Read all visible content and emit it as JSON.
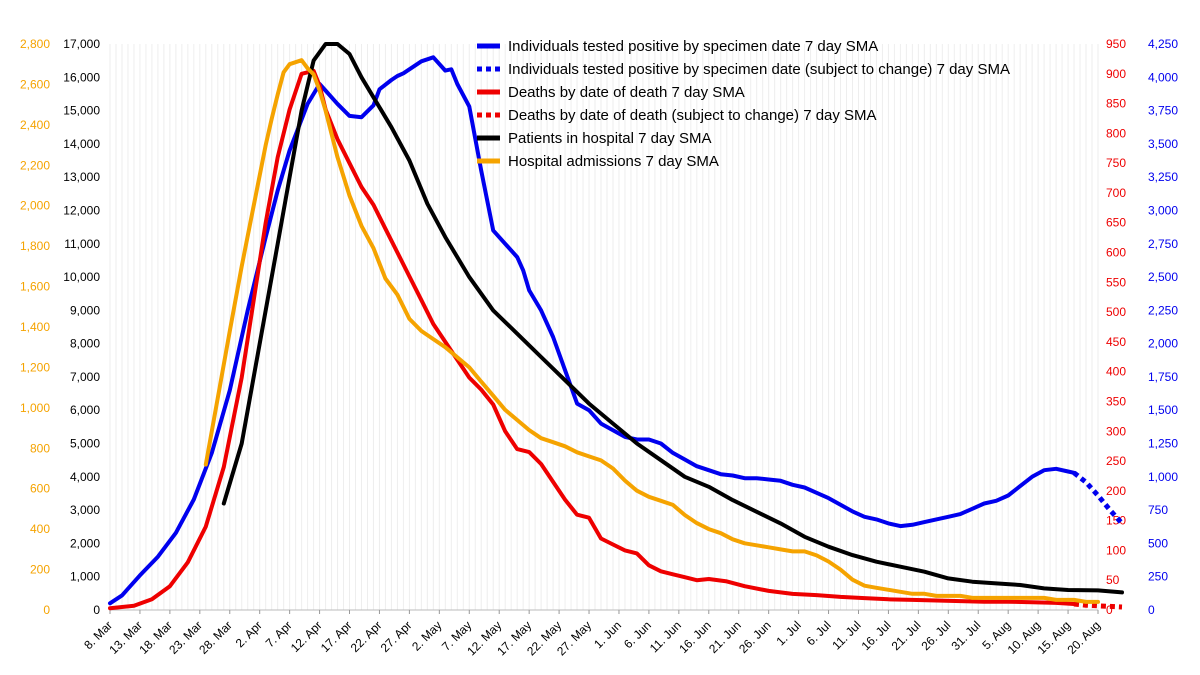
{
  "chart_data": {
    "type": "line",
    "title": "",
    "xlabel": "",
    "x_tick_labels": [
      "8. Mar",
      "13. Mar",
      "18. Mar",
      "23. Mar",
      "28. Mar",
      "2. Apr",
      "7. Apr",
      "12. Apr",
      "17. Apr",
      "22. Apr",
      "27. Apr",
      "2. May",
      "7. May",
      "12. May",
      "17. May",
      "22. May",
      "27. May",
      "1. Jun",
      "6. Jun",
      "11. Jun",
      "16. Jun",
      "21. Jun",
      "26. Jun",
      "1. Jul",
      "6. Jul",
      "11. Jul",
      "16. Jul",
      "21. Jul",
      "26. Jul",
      "31. Jul",
      "5. Aug",
      "10. Aug",
      "15. Aug",
      "20. Aug"
    ],
    "x_day_range": [
      0,
      165
    ],
    "axes": {
      "y_hospital": {
        "position": "left-outer",
        "color": "#f5a300",
        "range": [
          0,
          2800
        ],
        "ticks": [
          "0",
          "200",
          "400",
          "600",
          "800",
          "1,000",
          "1,200",
          "1,400",
          "1,600",
          "1,800",
          "2,000",
          "2,200",
          "2,400",
          "2,600",
          "2,800"
        ]
      },
      "y_patients": {
        "position": "left-inner",
        "color": "#000000",
        "range": [
          0,
          17000
        ],
        "ticks": [
          "0",
          "1,000",
          "2,000",
          "3,000",
          "4,000",
          "5,000",
          "6,000",
          "7,000",
          "8,000",
          "9,000",
          "10,000",
          "11,000",
          "12,000",
          "13,000",
          "14,000",
          "15,000",
          "16,000",
          "17,000"
        ]
      },
      "y_deaths": {
        "position": "right-inner",
        "color": "#ee0000",
        "range": [
          0,
          950
        ],
        "ticks": [
          "0",
          "50",
          "100",
          "150",
          "200",
          "250",
          "300",
          "350",
          "400",
          "450",
          "500",
          "550",
          "600",
          "650",
          "700",
          "750",
          "800",
          "850",
          "900",
          "950"
        ]
      },
      "y_cases": {
        "position": "right-outer",
        "color": "#0000ee",
        "range": [
          0,
          4250
        ],
        "ticks": [
          "0",
          "250",
          "500",
          "750",
          "1,000",
          "1,250",
          "1,500",
          "1,750",
          "2,000",
          "2,250",
          "2,500",
          "2,750",
          "3,000",
          "3,250",
          "3,500",
          "3,750",
          "4,000",
          "4,250"
        ]
      }
    },
    "series": [
      {
        "name": "Individuals tested positive by specimen date 7 day SMA",
        "axis": "y_cases",
        "color": "#0000ee",
        "style": "solid",
        "x": [
          0,
          2,
          5,
          8,
          11,
          14,
          17,
          20,
          23,
          26,
          28,
          30,
          33,
          35,
          36,
          38,
          40,
          42,
          44,
          45,
          47,
          48,
          49,
          50,
          52,
          54,
          56,
          57,
          58,
          60,
          62,
          64,
          66,
          68,
          69,
          70,
          72,
          74,
          76,
          78,
          80,
          82,
          84,
          86,
          88,
          90,
          92,
          94,
          96,
          98,
          100,
          102,
          104,
          106,
          108,
          110,
          112,
          114,
          116,
          118,
          120,
          122,
          124,
          126,
          128,
          130,
          132,
          134,
          136,
          138,
          140,
          142,
          144,
          146,
          148,
          150,
          152,
          154,
          156,
          158,
          160,
          161
        ],
        "y": [
          50,
          110,
          260,
          400,
          580,
          830,
          1180,
          1650,
          2250,
          2800,
          3150,
          3450,
          3800,
          3950,
          3900,
          3800,
          3710,
          3700,
          3790,
          3910,
          3980,
          4010,
          4030,
          4060,
          4120,
          4150,
          4050,
          4060,
          3950,
          3780,
          3300,
          2850,
          2750,
          2650,
          2550,
          2400,
          2250,
          2050,
          1800,
          1550,
          1500,
          1400,
          1350,
          1300,
          1280,
          1280,
          1250,
          1180,
          1130,
          1080,
          1050,
          1020,
          1010,
          990,
          990,
          980,
          970,
          940,
          920,
          880,
          840,
          790,
          740,
          700,
          680,
          650,
          630,
          640,
          660,
          680,
          700,
          720,
          760,
          800,
          820,
          860,
          930,
          1000,
          1050,
          1060,
          1040,
          1030
        ]
      },
      {
        "name": "Individuals tested positive by specimen date (subject to change) 7 day SMA",
        "axis": "y_cases",
        "color": "#0000ee",
        "style": "dotted",
        "x": [
          161,
          163,
          165,
          167,
          169
        ],
        "y": [
          1030,
          960,
          860,
          750,
          650
        ]
      },
      {
        "name": "Deaths by date of death 7 day SMA",
        "axis": "y_deaths",
        "color": "#ee0000",
        "style": "solid",
        "x": [
          0,
          4,
          7,
          10,
          13,
          16,
          19,
          22,
          24,
          26,
          28,
          30,
          32,
          34,
          35,
          36,
          38,
          40,
          42,
          44,
          46,
          48,
          50,
          52,
          54,
          56,
          58,
          60,
          62,
          64,
          66,
          68,
          70,
          72,
          74,
          76,
          78,
          80,
          82,
          84,
          86,
          88,
          90,
          92,
          94,
          96,
          98,
          100,
          103,
          106,
          110,
          114,
          118,
          122,
          126,
          130,
          134,
          138,
          142,
          146,
          150,
          154,
          158,
          161
        ],
        "y": [
          3,
          7,
          18,
          40,
          80,
          140,
          240,
          390,
          520,
          650,
          760,
          840,
          900,
          905,
          880,
          840,
          790,
          750,
          710,
          680,
          640,
          600,
          560,
          520,
          480,
          450,
          420,
          390,
          370,
          345,
          300,
          270,
          265,
          245,
          215,
          185,
          160,
          155,
          120,
          110,
          100,
          95,
          75,
          65,
          60,
          55,
          50,
          52,
          48,
          40,
          32,
          27,
          25,
          22,
          20,
          18,
          17,
          16,
          15,
          14,
          14,
          13,
          12,
          10
        ]
      },
      {
        "name": "Deaths by date of death (subject to change) 7 day SMA",
        "axis": "y_deaths",
        "color": "#ee0000",
        "style": "dotted",
        "x": [
          161,
          163,
          165,
          167,
          169
        ],
        "y": [
          10,
          8,
          7,
          6,
          5
        ]
      },
      {
        "name": "Patients in hospital 7 day SMA",
        "axis": "y_patients",
        "color": "#000000",
        "style": "solid",
        "x": [
          19,
          22,
          25,
          28,
          30,
          32,
          34,
          36,
          38,
          40,
          42,
          44,
          47,
          50,
          53,
          56,
          60,
          64,
          68,
          72,
          76,
          80,
          84,
          88,
          92,
          96,
          100,
          104,
          108,
          112,
          116,
          120,
          124,
          128,
          132,
          136,
          140,
          144,
          148,
          152,
          156,
          160,
          165,
          169
        ],
        "y": [
          3200,
          5000,
          8000,
          11000,
          13000,
          15000,
          16500,
          17000,
          17000,
          16700,
          16000,
          15400,
          14500,
          13500,
          12200,
          11200,
          10000,
          9000,
          8300,
          7600,
          6900,
          6200,
          5600,
          5000,
          4500,
          4000,
          3700,
          3300,
          2950,
          2600,
          2200,
          1900,
          1650,
          1450,
          1300,
          1150,
          950,
          850,
          800,
          750,
          650,
          600,
          590,
          530
        ]
      },
      {
        "name": "Hospital admissions 7 day SMA",
        "axis": "y_hospital",
        "color": "#f5a300",
        "style": "solid",
        "x": [
          16,
          18,
          20,
          22,
          24,
          26,
          27,
          28,
          29,
          30,
          31,
          32,
          33,
          34,
          35,
          36,
          38,
          40,
          42,
          44,
          46,
          48,
          50,
          52,
          54,
          56,
          58,
          60,
          62,
          64,
          66,
          68,
          70,
          72,
          74,
          76,
          78,
          80,
          82,
          84,
          86,
          88,
          90,
          92,
          94,
          96,
          98,
          100,
          102,
          104,
          106,
          108,
          110,
          112,
          114,
          116,
          118,
          120,
          122,
          124,
          126,
          128,
          130,
          132,
          134,
          136,
          138,
          140,
          142,
          144,
          146,
          148,
          150,
          152,
          154,
          156,
          158,
          160,
          161,
          163,
          165
        ],
        "y": [
          720,
          1050,
          1380,
          1700,
          2000,
          2300,
          2430,
          2550,
          2660,
          2700,
          2710,
          2720,
          2680,
          2650,
          2570,
          2470,
          2240,
          2050,
          1900,
          1790,
          1640,
          1560,
          1440,
          1380,
          1340,
          1300,
          1250,
          1200,
          1130,
          1060,
          990,
          940,
          890,
          850,
          830,
          810,
          780,
          760,
          740,
          700,
          640,
          590,
          560,
          540,
          520,
          470,
          430,
          400,
          380,
          350,
          330,
          320,
          310,
          300,
          290,
          290,
          270,
          240,
          200,
          150,
          120,
          110,
          100,
          90,
          80,
          80,
          70,
          70,
          70,
          60,
          60,
          60,
          60,
          60,
          60,
          60,
          50,
          50,
          50,
          40,
          40
        ]
      }
    ]
  }
}
